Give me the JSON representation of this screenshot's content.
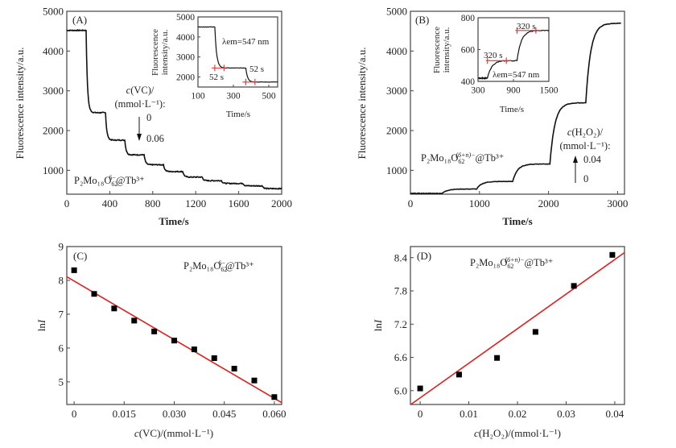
{
  "chart_data": [
    {
      "panel": "A",
      "type": "line",
      "panel_tag": "(A)",
      "xlabel": "Time/s",
      "ylabel": "Fluorescence intensity/a.u.",
      "xlim": [
        0,
        2000
      ],
      "ylim": [
        400,
        5000
      ],
      "xticks": [
        "0",
        "400",
        "800",
        "1200",
        "1600",
        "2000"
      ],
      "xtick_values": [
        0,
        400,
        800,
        1200,
        1600,
        2000
      ],
      "yticks": [
        "1000",
        "2000",
        "3000",
        "4000",
        "5000"
      ],
      "ytick_values": [
        1000,
        2000,
        3000,
        4000,
        5000
      ],
      "series": [
        {
          "name": "P2Mo18O62(6-)@Tb3+ trace",
          "steps": [
            {
              "t_start": 0,
              "t_end": 180,
              "value": 4520
            },
            {
              "t_start": 180,
              "t_end": 360,
              "value": 2450
            },
            {
              "t_start": 360,
              "t_end": 540,
              "value": 1760
            },
            {
              "t_start": 540,
              "t_end": 720,
              "value": 1390
            },
            {
              "t_start": 720,
              "t_end": 900,
              "value": 1140
            },
            {
              "t_start": 900,
              "t_end": 1080,
              "value": 970
            },
            {
              "t_start": 1080,
              "t_end": 1260,
              "value": 830
            },
            {
              "t_start": 1260,
              "t_end": 1440,
              "value": 740
            },
            {
              "t_start": 1440,
              "t_end": 1640,
              "value": 670
            },
            {
              "t_start": 1640,
              "t_end": 1820,
              "value": 610
            },
            {
              "t_start": 1820,
              "t_end": 2000,
              "value": 540
            }
          ]
        }
      ],
      "annotations": {
        "concentration_label_line1": "c(VC)/",
        "concentration_label_line2": "(mmol·L⁻¹):",
        "conc_start": "0",
        "conc_end": "0.06",
        "species_main": "P₂Mo₁₈O",
        "species_sub": "62",
        "species_sup": "6−",
        "species_tail": "@Tb³⁺"
      },
      "inset": {
        "xlabel": "Time/s",
        "ylabel_line1": "Fluorescence",
        "ylabel_line2": "intensity/a.u.",
        "xlim": [
          100,
          550
        ],
        "ylim": [
          1500,
          5000
        ],
        "xticks": [
          "100",
          "300",
          "500"
        ],
        "xtick_values": [
          100,
          300,
          500
        ],
        "yticks": [
          "2000",
          "3000",
          "4000",
          "5000"
        ],
        "ytick_values": [
          2000,
          3000,
          4000,
          5000
        ],
        "wavelength_label": "λem=547 nm",
        "response_time_1": "52 s",
        "response_time_2": "52 s",
        "steps": [
          {
            "t_start": 100,
            "t_end": 195,
            "value": 4500
          },
          {
            "t_start": 195,
            "t_end": 370,
            "value": 2450
          },
          {
            "t_start": 370,
            "t_end": 550,
            "value": 1750
          }
        ],
        "response_marks": [
          {
            "t1": 195,
            "t2": 247,
            "value": 2450
          },
          {
            "t1": 370,
            "t2": 422,
            "value": 1750
          }
        ]
      }
    },
    {
      "panel": "B",
      "type": "line",
      "panel_tag": "(B)",
      "xlabel": "Time/s",
      "ylabel": "Fluorescence intensity/a.u.",
      "xlim": [
        0,
        3100
      ],
      "ylim": [
        400,
        5000
      ],
      "xticks": [
        "0",
        "1000",
        "2000",
        "3000"
      ],
      "xtick_values": [
        0,
        1000,
        2000,
        3000
      ],
      "yticks": [
        "1000",
        "2000",
        "3000",
        "4000",
        "5000"
      ],
      "ytick_values": [
        1000,
        2000,
        3000,
        4000,
        5000
      ],
      "series": [
        {
          "name": "P2Mo18O62(6+n)-@Tb3+ trace",
          "steps": [
            {
              "t_start": 0,
              "t_end": 460,
              "value": 420
            },
            {
              "t_start": 460,
              "t_end": 960,
              "value": 530
            },
            {
              "t_start": 960,
              "t_end": 1480,
              "value": 720
            },
            {
              "t_start": 1480,
              "t_end": 2020,
              "value": 1160
            },
            {
              "t_start": 2020,
              "t_end": 2540,
              "value": 2700
            },
            {
              "t_start": 2540,
              "t_end": 3050,
              "value": 4700
            }
          ]
        }
      ],
      "annotations": {
        "concentration_label_line1": "c(H₂O₂)/",
        "concentration_label_line2": "(mmol·L⁻¹):",
        "conc_start": "0",
        "conc_end": "0.04",
        "species_main": "P₂Mo₁₈O",
        "species_sub": "62",
        "species_sup": "(6+n)−",
        "species_tail": "@Tb³⁺"
      },
      "inset": {
        "xlabel": "Time/s",
        "ylabel_line1": "Fluorescence",
        "ylabel_line2": "intensity/a.u.",
        "xlim": [
          300,
          1500
        ],
        "ylim": [
          400,
          800
        ],
        "xticks": [
          "300",
          "900",
          "1500"
        ],
        "xtick_values": [
          300,
          900,
          1500
        ],
        "yticks": [
          "400",
          "600",
          "800"
        ],
        "ytick_values": [
          400,
          600,
          800
        ],
        "wavelength_label": "λem=547 nm",
        "response_time_1": "320 s",
        "response_time_2": "320 s",
        "steps": [
          {
            "t_start": 300,
            "t_end": 460,
            "value": 420
          },
          {
            "t_start": 460,
            "t_end": 960,
            "value": 530
          },
          {
            "t_start": 960,
            "t_end": 1500,
            "value": 720
          }
        ],
        "response_marks": [
          {
            "t1": 460,
            "t2": 780,
            "value": 530
          },
          {
            "t1": 960,
            "t2": 1280,
            "value": 720
          }
        ]
      }
    },
    {
      "panel": "C",
      "type": "scatter",
      "panel_tag": "(C)",
      "xlabel": "c(VC)/(mmol·L⁻¹)",
      "ylabel": "lnI",
      "xlim": [
        -0.0022,
        0.0622
      ],
      "ylim": [
        4.33,
        9
      ],
      "xticks": [
        "0",
        "0.015",
        "0.030",
        "0.045",
        "0.060"
      ],
      "xtick_values": [
        0,
        0.015,
        0.03,
        0.045,
        0.06
      ],
      "yticks": [
        "5",
        "6",
        "7",
        "8",
        "9"
      ],
      "ytick_values": [
        5,
        6,
        7,
        8,
        9
      ],
      "species_main": "P₂Mo₁₈O",
      "species_sub": "62",
      "species_sup": "6−",
      "species_tail": "@Tb³⁺",
      "x": [
        0,
        0.006,
        0.012,
        0.018,
        0.024,
        0.03,
        0.036,
        0.042,
        0.048,
        0.054,
        0.06
      ],
      "y": [
        8.3,
        7.6,
        7.17,
        6.81,
        6.49,
        6.22,
        5.96,
        5.7,
        5.39,
        5.04,
        4.55
      ],
      "fit": {
        "slope": -57.8,
        "intercept": 7.98,
        "color": "#e02020"
      }
    },
    {
      "panel": "D",
      "type": "scatter",
      "panel_tag": "(D)",
      "xlabel": "c(H₂O₂)/(mmol·L⁻¹)",
      "ylabel": "lnI",
      "xlim": [
        -0.002,
        0.042
      ],
      "ylim": [
        5.75,
        8.6
      ],
      "xticks": [
        "0",
        "0.01",
        "0.02",
        "0.03",
        "0.04"
      ],
      "xtick_values": [
        0,
        0.01,
        0.02,
        0.03,
        0.04
      ],
      "yticks": [
        "6.0",
        "6.6",
        "7.2",
        "7.8",
        "8.4"
      ],
      "ytick_values": [
        6.0,
        6.6,
        7.2,
        7.8,
        8.4
      ],
      "species_main": "P₂Mo₁₈O",
      "species_sub": "62",
      "species_sup": "(6+n)−",
      "species_tail": "@Tb³⁺",
      "x": [
        0,
        0.008,
        0.0158,
        0.0237,
        0.0316,
        0.0395
      ],
      "y": [
        6.04,
        6.29,
        6.59,
        7.06,
        7.89,
        8.45
      ],
      "fit": {
        "slope": 62.4,
        "intercept": 5.87,
        "color": "#e02020"
      }
    }
  ]
}
